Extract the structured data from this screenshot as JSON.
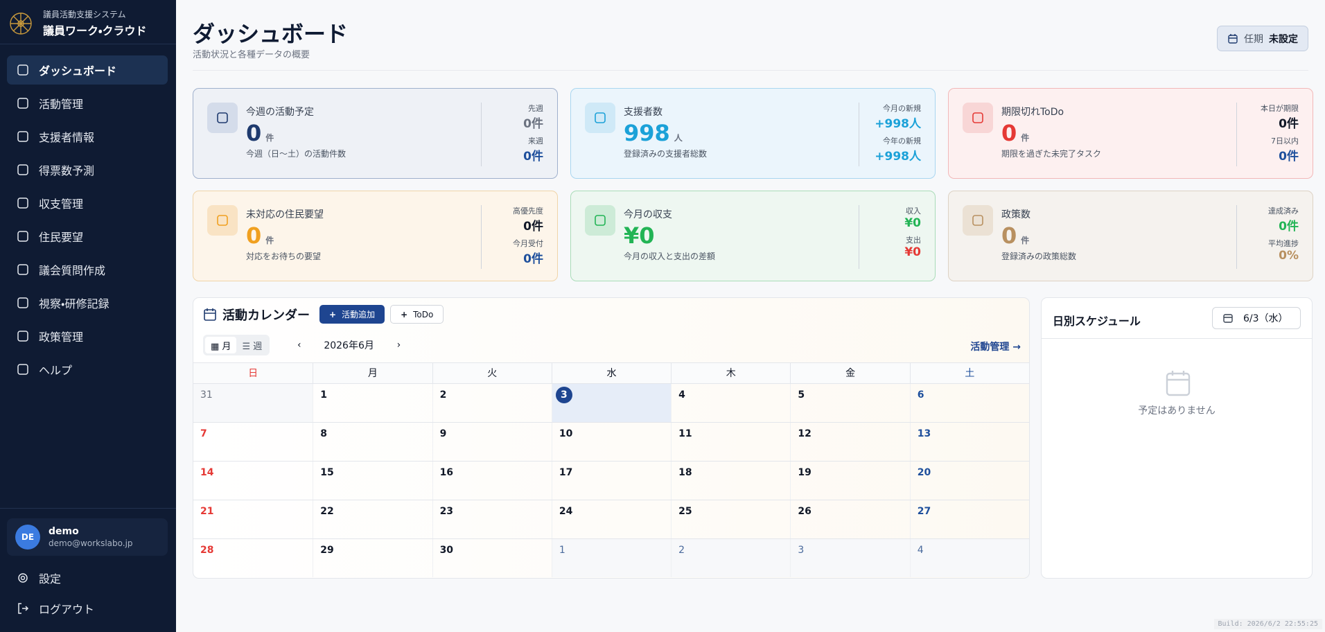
{
  "sidebar": {
    "system_name": "議員活動支援システム",
    "app_name": "議員ワーク・クラウド",
    "nav": [
      "ダッシュボード",
      "活動管理",
      "支援者情報",
      "得票数予測",
      "収支管理",
      "住民要望",
      "議会質問作成",
      "視察・研修記録",
      "政策管理",
      "ヘルプ"
    ],
    "user": {
      "initials": "DE",
      "name": "demo",
      "email": "demo@workslabo.jp"
    },
    "settings": "設定",
    "logout": "ログアウト"
  },
  "header": {
    "title": "ダッシュボード",
    "subtitle": "活動状況と各種データの概要",
    "term_label": "任期",
    "term_value": "未設定"
  },
  "cards": [
    {
      "title": "今週の活動予定",
      "value": "0",
      "unit": "件",
      "desc": "今週（日〜土）の活動件数",
      "color": "#1e3a6e",
      "stats": [
        {
          "label": "先週",
          "value": "0件",
          "color": "#6b7280"
        },
        {
          "label": "来週",
          "value": "0件",
          "color": "#1e4f9c"
        }
      ]
    },
    {
      "title": "支援者数",
      "value": "998",
      "unit": "人",
      "desc": "登録済みの支援者総数",
      "color": "#1ba1d8",
      "stats": [
        {
          "label": "今月の新規",
          "value": "+998人",
          "color": "#1ba1d8"
        },
        {
          "label": "今年の新規",
          "value": "+998人",
          "color": "#1ba1d8"
        }
      ]
    },
    {
      "title": "期限切れToDo",
      "value": "0",
      "unit": "件",
      "desc": "期限を過ぎた未完了タスク",
      "color": "#e53935",
      "stats": [
        {
          "label": "本日が期限",
          "value": "0件",
          "color": "#111827"
        },
        {
          "label": "7日以内",
          "value": "0件",
          "color": "#1e4f9c"
        }
      ]
    },
    {
      "title": "未対応の住民要望",
      "value": "0",
      "unit": "件",
      "desc": "対応をお待ちの要望",
      "color": "#f0a020",
      "stats": [
        {
          "label": "高優先度",
          "value": "0件",
          "color": "#111827"
        },
        {
          "label": "今月受付",
          "value": "0件",
          "color": "#1e4f9c"
        }
      ]
    },
    {
      "title": "今月の収支",
      "value": "¥0",
      "unit": null,
      "desc": "今月の収入と支出の差額",
      "color": "#22b455",
      "stats": [
        {
          "label": "収入",
          "value": "¥0",
          "color": "#22b455"
        },
        {
          "label": "支出",
          "value": "¥0",
          "color": "#e53935"
        }
      ]
    },
    {
      "title": "政策数",
      "value": "0",
      "unit": "件",
      "desc": "登録済みの政策総数",
      "color": "#b89060",
      "stats": [
        {
          "label": "達成済み",
          "value": "0件",
          "color": "#22b455"
        },
        {
          "label": "平均進捗",
          "value": "0%",
          "color": "#b89060"
        }
      ]
    }
  ],
  "calendar": {
    "title": "活動カレンダー",
    "add_activity": "活動追加",
    "add_todo": "ToDo",
    "view_month": "月",
    "view_week": "週",
    "month": "2026年6月",
    "link": "活動管理 →",
    "weekdays": [
      "日",
      "月",
      "火",
      "水",
      "木",
      "金",
      "土"
    ],
    "weeks": [
      [
        31,
        1,
        2,
        3,
        4,
        5,
        6
      ],
      [
        7,
        8,
        9,
        10,
        11,
        12,
        13
      ],
      [
        14,
        15,
        16,
        17,
        18,
        19,
        20
      ],
      [
        21,
        22,
        23,
        24,
        25,
        26,
        27
      ],
      [
        28,
        29,
        30,
        1,
        2,
        3,
        4
      ]
    ]
  },
  "schedule": {
    "title": "日別スケジュール",
    "date": "6/3（水）",
    "empty": "予定はありません"
  },
  "build": "Build: 2026/6/2 22:55:25"
}
